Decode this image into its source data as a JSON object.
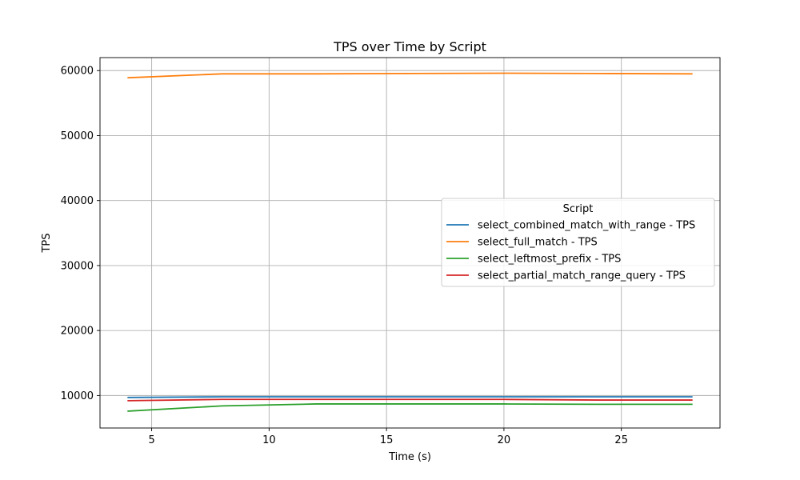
{
  "chart_data": {
    "type": "line",
    "title": "TPS over Time by Script",
    "xlabel": "Time (s)",
    "ylabel": "TPS",
    "xlim": [
      2.8,
      29.2
    ],
    "ylim": [
      5000,
      62000
    ],
    "xticks": [
      5,
      10,
      15,
      20,
      25
    ],
    "yticks": [
      10000,
      20000,
      30000,
      40000,
      50000,
      60000
    ],
    "grid": true,
    "legend": {
      "title": "Script",
      "placement": "center-right"
    },
    "x": [
      4,
      8,
      12,
      16,
      20,
      24,
      28
    ],
    "series": [
      {
        "name": "select_combined_match_with_range - TPS",
        "color": "#1f77b4",
        "values": [
          9700,
          9800,
          9800,
          9800,
          9800,
          9800,
          9800
        ]
      },
      {
        "name": "select_full_match - TPS",
        "color": "#ff7f0e",
        "values": [
          58900,
          59500,
          59500,
          59550,
          59600,
          59550,
          59500
        ]
      },
      {
        "name": "select_leftmost_prefix - TPS",
        "color": "#2ca02c",
        "values": [
          7600,
          8400,
          8700,
          8700,
          8700,
          8650,
          8650
        ]
      },
      {
        "name": "select_partial_match_range_query - TPS",
        "color": "#d62728",
        "values": [
          9200,
          9400,
          9400,
          9400,
          9400,
          9300,
          9300
        ]
      }
    ]
  }
}
